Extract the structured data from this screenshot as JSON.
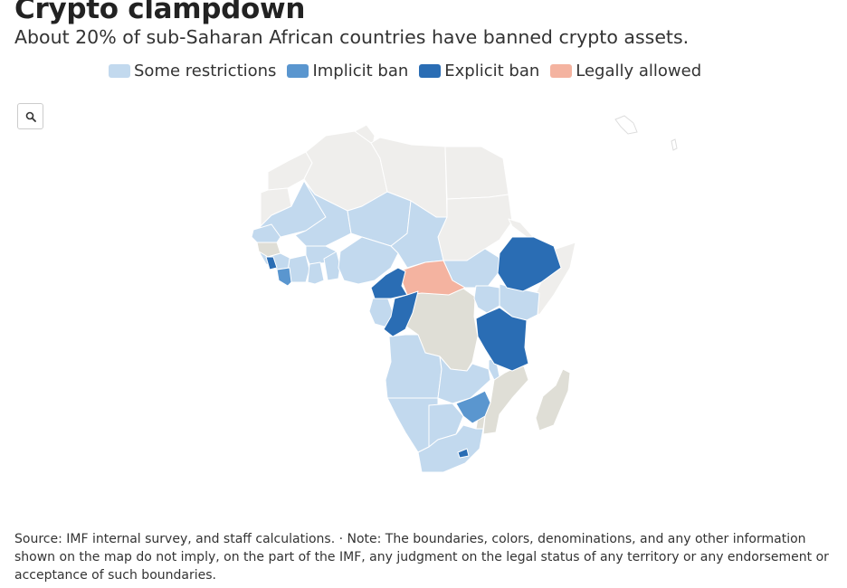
{
  "title": "Crypto clampdown",
  "subtitle": "About 20% of sub-Saharan African countries have banned crypto assets.",
  "legend": [
    {
      "label": "Some restrictions",
      "color": "#c2d9ee"
    },
    {
      "label": "Implicit ban",
      "color": "#5a96cf"
    },
    {
      "label": "Explicit ban",
      "color": "#2a6db4"
    },
    {
      "label": "Legally allowed",
      "color": "#f4b3a0"
    }
  ],
  "map_colors": {
    "no_data": "#efeeec",
    "not_surveyed": "#dfded6",
    "border": "#ffffff"
  },
  "search_icon": "search-icon",
  "source": "Source: IMF internal survey, and staff calculations. · Note: The boundaries, colors, denominations, and any other information shown on the map do not imply, on the part of the IMF, any judgment on the legal status of any territory or any endorsement or acceptance of such boundaries."
}
